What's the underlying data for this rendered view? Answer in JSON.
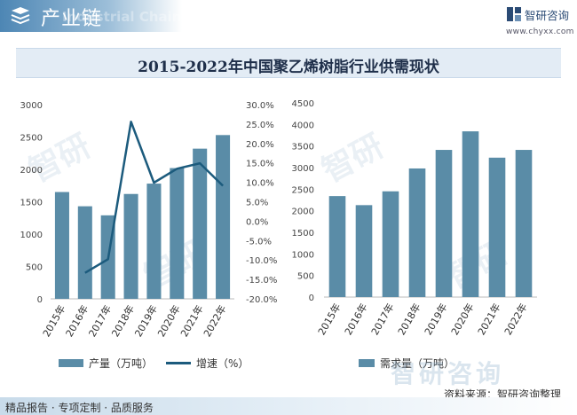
{
  "header": {
    "section_title": "产业链",
    "watermark_text": "Industrial Chain",
    "brand_name": "智研咨询",
    "brand_url": "www.chyxx.com"
  },
  "title": "2015-2022年中国聚乙烯树脂行业供需现状",
  "chart_data": [
    {
      "type": "bar+line",
      "categories": [
        "2015年",
        "2016年",
        "2017年",
        "2018年",
        "2019年",
        "2020年",
        "2021年",
        "2022年"
      ],
      "series": [
        {
          "name": "产量（万吨）",
          "type": "bar",
          "axis": "left",
          "values": [
            1650,
            1430,
            1290,
            1620,
            1780,
            2020,
            2320,
            2530
          ]
        },
        {
          "name": "增速（%）",
          "type": "line",
          "axis": "right",
          "values": [
            null,
            -13.3,
            -9.8,
            25.6,
            9.9,
            13.5,
            14.9,
            9.1
          ]
        }
      ],
      "ylim_left": [
        0,
        3000
      ],
      "yticks_left": [
        "0",
        "500",
        "1000",
        "1500",
        "2000",
        "2500",
        "3000"
      ],
      "ylim_right": [
        -20,
        30
      ],
      "yticks_right": [
        "-20.0%",
        "-15.0%",
        "-10.0%",
        "-5.0%",
        "0.0%",
        "5.0%",
        "10.0%",
        "15.0%",
        "20.0%",
        "25.0%",
        "30.0%"
      ],
      "legend": [
        "产量（万吨）",
        "增速（%）"
      ],
      "colors": {
        "bar": "#5a8ca7",
        "line": "#1c5b7d"
      }
    },
    {
      "type": "bar",
      "categories": [
        "2015年",
        "2016年",
        "2017年",
        "2018年",
        "2019年",
        "2020年",
        "2021年",
        "2022年"
      ],
      "series": [
        {
          "name": "需求量（万吨）",
          "values": [
            2340,
            2130,
            2450,
            2980,
            3410,
            3840,
            3230,
            3410
          ]
        }
      ],
      "ylim": [
        0,
        4500
      ],
      "yticks": [
        "0",
        "500",
        "1000",
        "1500",
        "2000",
        "2500",
        "3000",
        "3500",
        "4000",
        "4500"
      ],
      "legend": [
        "需求量（万吨）"
      ],
      "colors": {
        "bar": "#5a8ca7"
      }
    }
  ],
  "footer": {
    "left": "精品报告 · 专项定制 · 品质服务",
    "right": "资料来源：智研咨询整理",
    "watermark_brand": "智研咨询"
  }
}
